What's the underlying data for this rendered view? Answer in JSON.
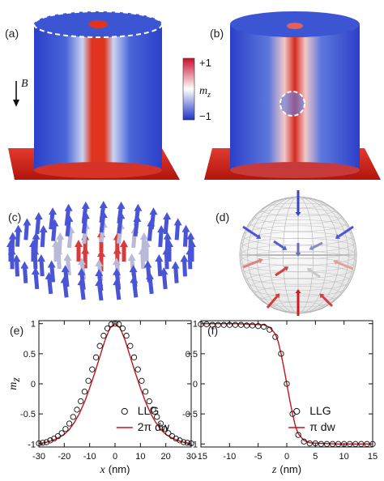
{
  "panels": {
    "a": "(a)",
    "b": "(b)",
    "c": "(c)",
    "d": "(d)",
    "e": "(e)",
    "f": "(f)"
  },
  "field_label": "B",
  "colorbar": {
    "top_label": "+1",
    "bottom_label": "−1",
    "quantity": "m",
    "subscript": "z",
    "colors": [
      "#c8102e",
      "#ffffff",
      "#1f33c4"
    ]
  },
  "colors": {
    "llg_marker": "#111111",
    "theory_line": "#c0151b",
    "red": "#d11a1a",
    "blue": "#2f3fd0"
  },
  "chart_data": [
    {
      "panel": "(e)",
      "type": "line",
      "xlabel": "x",
      "xunit": "(nm)",
      "ylabel": "m",
      "ysub": "z",
      "xlim": [
        -30,
        30
      ],
      "ylim": [
        -1.05,
        1.05
      ],
      "xticks": [
        -30,
        -20,
        -10,
        0,
        10,
        20,
        30
      ],
      "yticks": [
        -1,
        -0.5,
        0,
        0.5,
        1
      ],
      "ytick_labels": [
        "-1",
        "-0.5",
        "0",
        "0.5",
        "1"
      ],
      "legend_position": "bottom-right",
      "series": [
        {
          "name": "LLG",
          "style": "markers",
          "x": [
            -30,
            -28.5,
            -27,
            -25.5,
            -24,
            -22.5,
            -21,
            -19.5,
            -18,
            -16.5,
            -15,
            -13.5,
            -12,
            -10.5,
            -9,
            -7.5,
            -6,
            -4.5,
            -3,
            -1.5,
            0,
            1.5,
            3,
            4.5,
            6,
            7.5,
            9,
            10.5,
            12,
            13.5,
            15,
            16.5,
            18,
            19.5,
            21,
            22.5,
            24,
            25.5,
            27,
            28.5,
            30
          ],
          "y": [
            -0.99,
            -0.98,
            -0.97,
            -0.94,
            -0.91,
            -0.87,
            -0.82,
            -0.75,
            -0.66,
            -0.55,
            -0.43,
            -0.29,
            -0.13,
            0.05,
            0.24,
            0.44,
            0.63,
            0.8,
            0.92,
            0.99,
            1.0,
            0.99,
            0.92,
            0.8,
            0.63,
            0.44,
            0.24,
            0.05,
            -0.13,
            -0.29,
            -0.43,
            -0.55,
            -0.66,
            -0.75,
            -0.82,
            -0.87,
            -0.91,
            -0.94,
            -0.97,
            -0.98,
            -0.99
          ]
        },
        {
          "name": "2π dw",
          "style": "line",
          "x": [
            -30,
            -28,
            -26,
            -24,
            -22,
            -20,
            -18,
            -16,
            -14,
            -12,
            -10,
            -8,
            -6,
            -4,
            -2,
            0,
            2,
            4,
            6,
            8,
            10,
            12,
            14,
            16,
            18,
            20,
            22,
            24,
            26,
            28,
            30
          ],
          "y": [
            -0.99,
            -0.98,
            -0.96,
            -0.93,
            -0.89,
            -0.84,
            -0.76,
            -0.64,
            -0.49,
            -0.3,
            -0.07,
            0.18,
            0.45,
            0.72,
            0.93,
            1.0,
            0.93,
            0.72,
            0.45,
            0.18,
            -0.07,
            -0.3,
            -0.49,
            -0.64,
            -0.76,
            -0.84,
            -0.89,
            -0.93,
            -0.96,
            -0.98,
            -0.99
          ]
        }
      ]
    },
    {
      "panel": "(f)",
      "type": "line",
      "xlabel": "z",
      "xunit": "(nm)",
      "ylabel": "",
      "ysub": "",
      "xlim": [
        -15,
        15
      ],
      "ylim": [
        -1.05,
        1.05
      ],
      "xticks": [
        -15,
        -10,
        -5,
        0,
        5,
        10,
        15
      ],
      "yticks": [
        -1,
        -0.5,
        0,
        0.5,
        1
      ],
      "ytick_labels": [
        "-1",
        "-0.5",
        "0",
        "0.5",
        "1"
      ],
      "legend_position": "bottom-right",
      "series": [
        {
          "name": "LLG",
          "style": "markers",
          "x": [
            -15,
            -14,
            -13,
            -12,
            -11,
            -10,
            -9,
            -8,
            -7,
            -6,
            -5,
            -4,
            -3,
            -2,
            -1,
            0,
            1,
            2,
            3,
            4,
            5,
            6,
            7,
            8,
            9,
            10,
            11,
            12,
            13,
            14,
            15
          ],
          "y": [
            0.99,
            0.99,
            0.98,
            0.98,
            0.98,
            0.98,
            0.98,
            0.98,
            0.97,
            0.97,
            0.96,
            0.95,
            0.9,
            0.78,
            0.5,
            0.0,
            -0.5,
            -0.85,
            -0.96,
            -0.99,
            -0.99,
            -1.0,
            -1.0,
            -1.0,
            -1.0,
            -1.0,
            -1.0,
            -1.0,
            -1.0,
            -1.0,
            -1.0
          ]
        },
        {
          "name": "π dw",
          "style": "line",
          "x": [
            -15,
            -12,
            -9,
            -6,
            -4,
            -3,
            -2,
            -1.5,
            -1,
            -0.5,
            0,
            0.5,
            1,
            1.5,
            2,
            3,
            4,
            6,
            9,
            12,
            15
          ],
          "y": [
            1.0,
            1.0,
            1.0,
            0.99,
            0.98,
            0.94,
            0.83,
            0.7,
            0.5,
            0.26,
            0.0,
            -0.26,
            -0.5,
            -0.7,
            -0.83,
            -0.94,
            -0.98,
            -0.99,
            -1.0,
            -1.0,
            -1.0
          ]
        }
      ]
    }
  ]
}
